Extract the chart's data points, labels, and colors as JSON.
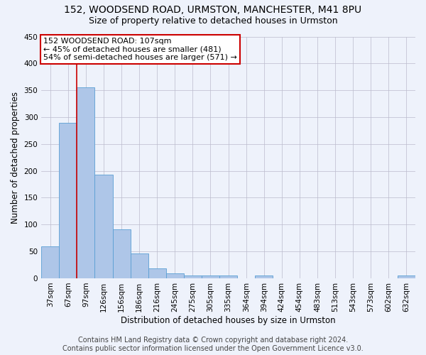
{
  "title": "152, WOODSEND ROAD, URMSTON, MANCHESTER, M41 8PU",
  "subtitle": "Size of property relative to detached houses in Urmston",
  "xlabel": "Distribution of detached houses by size in Urmston",
  "ylabel": "Number of detached properties",
  "footer_line1": "Contains HM Land Registry data © Crown copyright and database right 2024.",
  "footer_line2": "Contains public sector information licensed under the Open Government Licence v3.0.",
  "bar_labels": [
    "37sqm",
    "67sqm",
    "97sqm",
    "126sqm",
    "156sqm",
    "186sqm",
    "216sqm",
    "245sqm",
    "275sqm",
    "305sqm",
    "335sqm",
    "364sqm",
    "394sqm",
    "424sqm",
    "454sqm",
    "483sqm",
    "513sqm",
    "543sqm",
    "573sqm",
    "602sqm",
    "632sqm"
  ],
  "bar_values": [
    59,
    289,
    355,
    193,
    91,
    46,
    19,
    9,
    5,
    5,
    5,
    0,
    5,
    0,
    0,
    0,
    0,
    0,
    0,
    0,
    5
  ],
  "bar_color": "#aec6e8",
  "bar_edge_color": "#5a9fd4",
  "background_color": "#eef2fb",
  "grid_color": "#bbbbcc",
  "vline_x_index": 2,
  "annotation_text_line1": "152 WOODSEND ROAD: 107sqm",
  "annotation_text_line2": "← 45% of detached houses are smaller (481)",
  "annotation_text_line3": "54% of semi-detached houses are larger (571) →",
  "annotation_box_facecolor": "#ffffff",
  "annotation_box_edgecolor": "#cc0000",
  "vline_color": "#cc0000",
  "ylim": [
    0,
    450
  ],
  "yticks": [
    0,
    50,
    100,
    150,
    200,
    250,
    300,
    350,
    400,
    450
  ],
  "title_fontsize": 10,
  "subtitle_fontsize": 9,
  "axis_label_fontsize": 8.5,
  "tick_fontsize": 7.5,
  "annotation_fontsize": 8,
  "footer_fontsize": 7
}
